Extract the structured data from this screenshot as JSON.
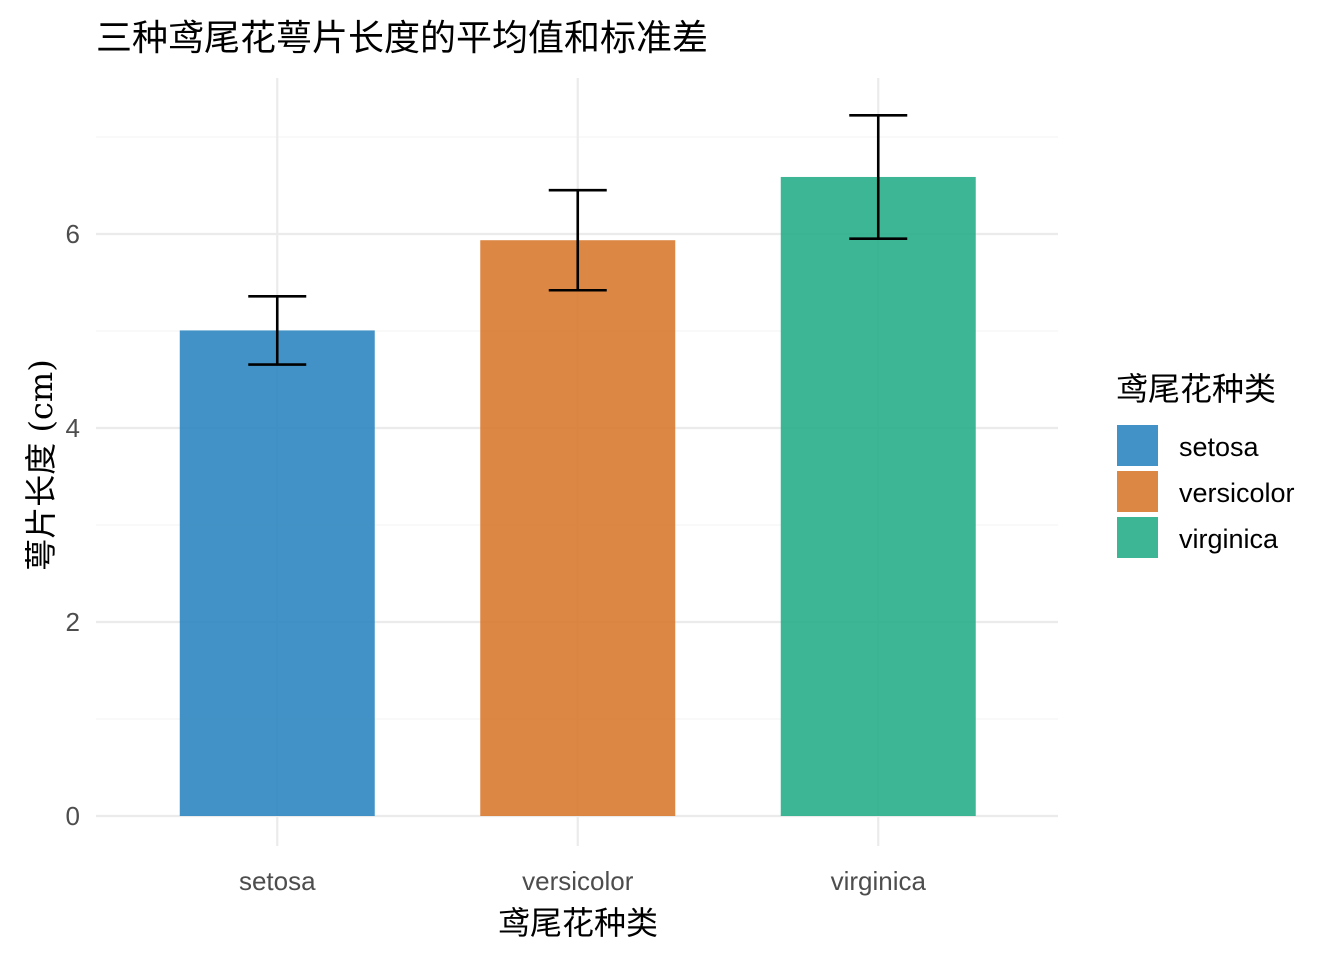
{
  "chart_data": {
    "type": "bar",
    "title": "三种鸢尾花萼片长度的平均值和标准差",
    "xlabel": "鸢尾花种类",
    "ylabel": "萼片长度 (cm)",
    "categories": [
      "setosa",
      "versicolor",
      "virginica"
    ],
    "values": [
      5.006,
      5.936,
      6.588
    ],
    "error": [
      0.352,
      0.516,
      0.636
    ],
    "ylim": [
      0,
      7.224
    ],
    "yticks": [
      0,
      2,
      4,
      6
    ],
    "colors": [
      "#2E86C1",
      "#D97A30",
      "#27AE8A"
    ],
    "grid": true,
    "legend": {
      "title": "鸢尾花种类",
      "position": "right",
      "entries": [
        "setosa",
        "versicolor",
        "virginica"
      ]
    }
  }
}
